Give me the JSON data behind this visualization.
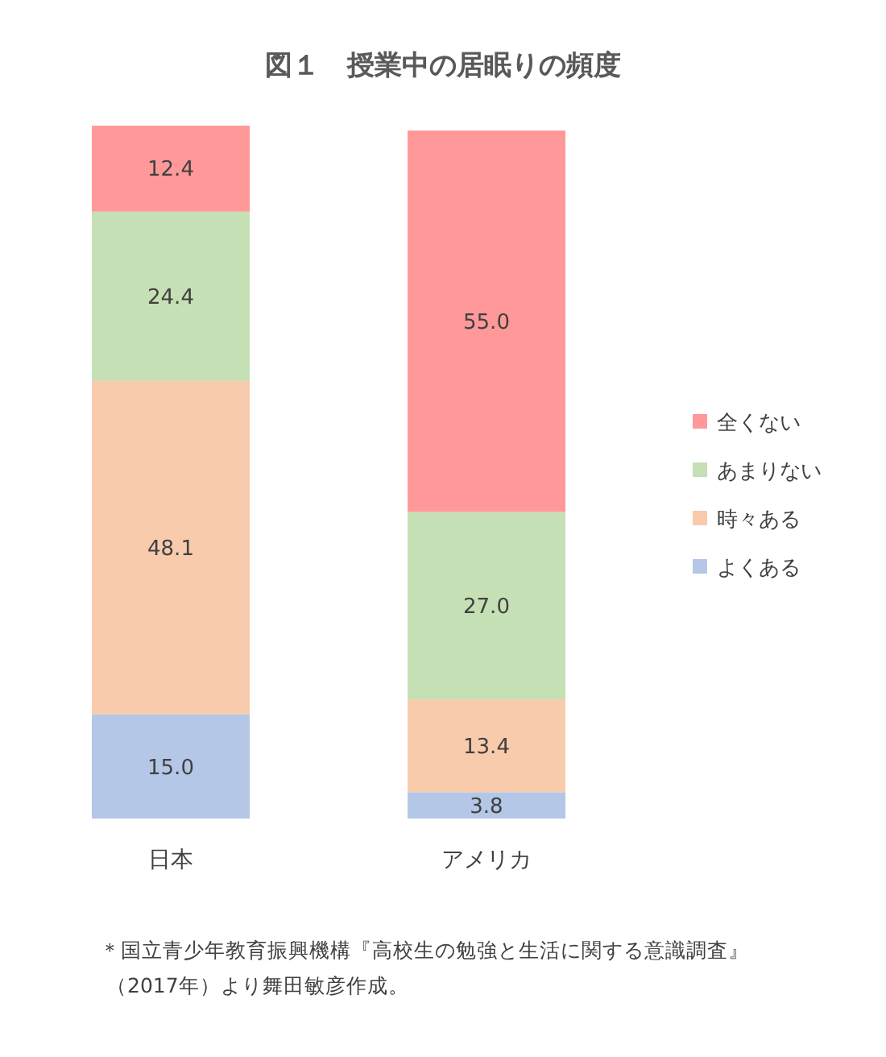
{
  "chart_data": {
    "type": "bar",
    "stacked": true,
    "title": "図１　授業中の居眠りの頻度",
    "categories": [
      "日本",
      "アメリカ"
    ],
    "series": [
      {
        "name": "よくある",
        "color": "#b4c7e7",
        "values": [
          15.0,
          3.8
        ],
        "value_labels": [
          "15.0",
          "3.8"
        ]
      },
      {
        "name": "時々ある",
        "color": "#f8cbad",
        "values": [
          48.1,
          13.4
        ],
        "value_labels": [
          "48.1",
          "13.4"
        ]
      },
      {
        "name": "あまりない",
        "color": "#c5e0b4",
        "values": [
          24.4,
          27.0
        ],
        "value_labels": [
          "24.4",
          "27.0"
        ]
      },
      {
        "name": "全くない",
        "color": "#ff9999",
        "values": [
          12.4,
          55.0
        ],
        "value_labels": [
          "12.4",
          "55.0"
        ]
      }
    ],
    "legend": "right",
    "grid": false,
    "annotations": [
      "＊国立青少年教育振興機構『高校生の勉強と生活に関する意識調査』",
      "（2017年）より舞田敏彦作成。"
    ]
  }
}
